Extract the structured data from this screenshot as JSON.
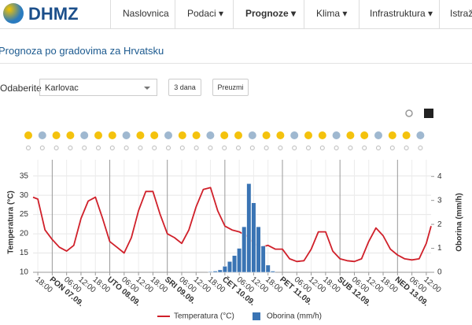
{
  "header": {
    "logo": "DHMZ",
    "nav": [
      "Naslovnica",
      "Podaci",
      "Prognoze",
      "Klima",
      "Infrastruktura",
      "Istraži"
    ]
  },
  "page_title": "Prognoza po gradovima za Hrvatsku",
  "form": {
    "label": "Odaberite",
    "city": "Karlovac",
    "buttons": [
      "3 dana",
      "Preuzmi"
    ]
  },
  "chart_data": {
    "type": "line",
    "xlim": [
      -8,
      158
    ],
    "xticks": [
      {
        "value": -6,
        "label": "18:00"
      },
      {
        "value": 0,
        "label": "PON 07.09."
      },
      {
        "value": 6,
        "label": "06:00"
      },
      {
        "value": 12,
        "label": "12:00"
      },
      {
        "value": 18,
        "label": "18:00"
      },
      {
        "value": 24,
        "label": "UTO 08.09."
      },
      {
        "value": 30,
        "label": "06:00"
      },
      {
        "value": 36,
        "label": "12:00"
      },
      {
        "value": 42,
        "label": "18:00"
      },
      {
        "value": 48,
        "label": "SRI 09.09."
      },
      {
        "value": 54,
        "label": "06:00"
      },
      {
        "value": 60,
        "label": "12:00"
      },
      {
        "value": 66,
        "label": "18:00"
      },
      {
        "value": 72,
        "label": "ČET 10.09."
      },
      {
        "value": 78,
        "label": "06:00"
      },
      {
        "value": 84,
        "label": "12:00"
      },
      {
        "value": 90,
        "label": "18:00"
      },
      {
        "value": 96,
        "label": "PET 11.09."
      },
      {
        "value": 102,
        "label": "06:00"
      },
      {
        "value": 108,
        "label": "12:00"
      },
      {
        "value": 114,
        "label": "18:00"
      },
      {
        "value": 120,
        "label": "SUB 12.09."
      },
      {
        "value": 126,
        "label": "06:00"
      },
      {
        "value": 132,
        "label": "12:00"
      },
      {
        "value": 138,
        "label": "18:00"
      },
      {
        "value": 144,
        "label": "NED 13.09."
      },
      {
        "value": 150,
        "label": "06:00"
      },
      {
        "value": 156,
        "label": "12:00"
      }
    ],
    "ylim": [
      10,
      38
    ],
    "yticks": [
      10,
      15,
      20,
      25,
      30,
      35
    ],
    "y2lim": [
      0,
      4.5
    ],
    "y2ticks": [
      0,
      1,
      2,
      3,
      4
    ],
    "ylabel": "Temperatura (°C)",
    "y2label": "Oborina (mm/h)",
    "grid": true,
    "series": [
      {
        "name": "Temperatura (°C)",
        "color": "#d0202a",
        "x": [
          -8,
          -6,
          -3,
          0,
          3,
          6,
          9,
          12,
          15,
          18,
          21,
          24,
          27,
          30,
          33,
          36,
          39,
          42,
          45,
          48,
          51,
          54,
          57,
          60,
          63,
          66,
          69,
          72,
          75,
          78,
          81,
          84,
          87,
          90,
          93,
          96,
          99,
          102,
          105,
          108,
          111,
          114,
          117,
          120,
          123,
          126,
          129,
          132,
          135,
          138,
          141,
          144,
          147,
          150,
          153,
          156,
          158
        ],
        "values": [
          29.5,
          29,
          21,
          18.5,
          16.5,
          15.5,
          17,
          24,
          28.5,
          29.5,
          24,
          18,
          16.5,
          15,
          19,
          26,
          31,
          31,
          25,
          20,
          19,
          17.5,
          21,
          27,
          31.5,
          32,
          26,
          22,
          21,
          20.5,
          19.5,
          17.5,
          16.5,
          17,
          16,
          16,
          13.5,
          12.8,
          13,
          16,
          20.5,
          20.5,
          15.5,
          13.5,
          13,
          12.8,
          13.5,
          18,
          21.5,
          19.5,
          16,
          14.5,
          13.5,
          13.2,
          13.5,
          17.5,
          22
        ]
      },
      {
        "name": "Oborina (mm/h)",
        "type": "bar",
        "axis": "y2",
        "color": "#3a74b4",
        "x": [
          66,
          68,
          70,
          72,
          74,
          76,
          78,
          80,
          82,
          84,
          86,
          88,
          90,
          92
        ],
        "values": [
          0.03,
          0.05,
          0.1,
          0.25,
          0.45,
          0.7,
          1.0,
          1.9,
          3.7,
          2.9,
          1.9,
          1.1,
          0.3,
          0.05
        ]
      }
    ],
    "legend": "bottom"
  }
}
